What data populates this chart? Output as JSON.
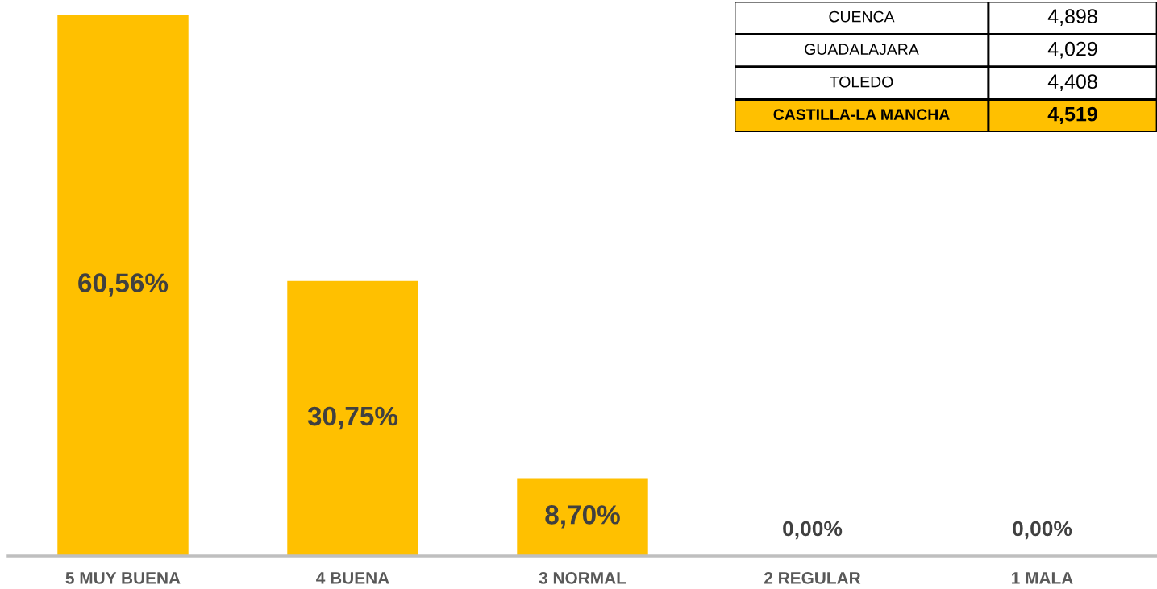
{
  "chart_data": [
    {
      "type": "bar",
      "categories": [
        "5 MUY BUENA",
        "4 BUENA",
        "3 NORMAL",
        "2 REGULAR",
        "1 MALA"
      ],
      "values": [
        60.56,
        30.75,
        8.7,
        0.0,
        0.0
      ],
      "color": "#ffc000",
      "value_labels": [
        "60,56%",
        "30,75%",
        "8,70%",
        "0,00%",
        "0,00%"
      ]
    },
    {
      "type": "other",
      "categories": [
        "CUENCA",
        "GUADALAJARA",
        "TOLEDO",
        "CASTILLA-LA MANCHA"
      ],
      "value_labels": [
        "4,898",
        "4,029",
        "4,408",
        "4,519"
      ],
      "colors": [
        "#ffffff",
        "#ffffff",
        "#ffffff",
        "#ffc000"
      ]
    }
  ]
}
